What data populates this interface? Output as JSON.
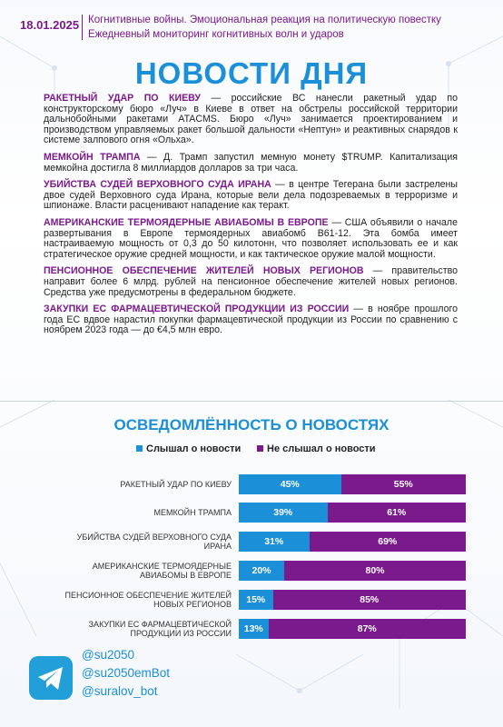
{
  "header": {
    "date": "18.01.2025",
    "line1": "Когнитивные войны. Эмоциональная реакция на политическую повестку",
    "line2": "Ежедневный мониторинг когнитивных волн и ударов"
  },
  "title": "НОВОСТИ ДНЯ",
  "news": [
    {
      "headline": "РАКЕТНЫЙ УДАР ПО КИЕВУ",
      "text": " — российские ВС нанесли ракетный удар по конструкторскому бюро «Луч» в Киеве в ответ на обстрелы российской территории дальнобойными ракетами ATACMS. Бюро «Луч» занимается проектированием и производством управляемых ракет большой дальности «Нептун» и реактивных снарядов к системе залпового огня «Ольха»."
    },
    {
      "headline": "МЕМКОЙН ТРАМПА",
      "text": " — Д. Трамп запустил мемную монету $TRUMP. Капитализация мемкойна достигла 8 миллиардов долларов за три часа."
    },
    {
      "headline": "УБИЙСТВА СУДЕЙ ВЕРХОВНОГО СУДА ИРАНА",
      "text": " — в центре Тегерана были застрелены двое судей Верховного суда Ирана, которые вели дела подозреваемых в терроризме и шпионаже. Власти расценивают нападение как теракт."
    },
    {
      "headline": "АМЕРИКАНСКИЕ ТЕРМОЯДЕРНЫЕ АВИАБОМЫ В ЕВРОПЕ",
      "text": " — США объявили о начале развертывания в Европе термоядерных авиабомб B61-12. Эта бомба имеет настраиваемую мощность от 0,3 до 50 килотонн, что позволяет использовать ее и как стратегическое оружие средней мощности, и как тактическое оружие малой мощности."
    },
    {
      "headline": "ПЕНСИОННОЕ ОБЕСПЕЧЕНИЕ ЖИТЕЛЕЙ НОВЫХ РЕГИОНОВ",
      "text": " — правительство направит более 6 млрд. рублей на пенсионное обеспечение жителей новых регионов. Средства уже предусмотрены в федеральном бюджете."
    },
    {
      "headline": "ЗАКУПКИ ЕС ФАРМАЦЕВТИЧЕСКОЙ ПРОДУКЦИИ ИЗ РОССИИ",
      "text": " — в ноябре прошлого года ЕС вдвое нарастил покупки фармацевтической продукции из России по сравнению с ноябрем 2023 года — до €4,5 млн евро."
    }
  ],
  "chart_data": {
    "type": "bar",
    "horizontal": true,
    "stacked": true,
    "title": "ОСВЕДОМЛЁННОСТЬ О НОВОСТЯХ",
    "categories": [
      "РАКЕТНЫЙ УДАР ПО КИЕВУ",
      "МЕМКОЙН ТРАМПА",
      "УБИЙСТВА СУДЕЙ ВЕРХОВНОГО СУДА ИРАНА",
      "АМЕРИКАНСКИЕ ТЕРМОЯДЕРНЫЕ АВИАБОМЫ В ЕВРОПЕ",
      "ПЕНСИОННОЕ ОБЕСПЕЧЕНИЕ ЖИТЕЛЕЙ НОВЫХ РЕГИОНОВ",
      "ЗАКУПКИ ЕС ФАРМАЦЕВТИЧЕСКОЙ ПРОДУКЦИИ ИЗ РОССИИ"
    ],
    "xlim": [
      0,
      100
    ],
    "series": [
      {
        "name": "Слышал о новости",
        "color": "#1b8fd8",
        "values": [
          45,
          39,
          31,
          20,
          15,
          13
        ],
        "value_labels": [
          "45%",
          "39%",
          "31%",
          "20%",
          "15%",
          "13%"
        ]
      },
      {
        "name": "Не слышал о новости",
        "color": "#7a1a8c",
        "values": [
          55,
          61,
          69,
          80,
          85,
          87
        ],
        "value_labels": [
          "55%",
          "61%",
          "69%",
          "80%",
          "85%",
          "87%"
        ]
      }
    ]
  },
  "footer": {
    "links": [
      "@su2050",
      "@su2050emBot",
      "@suralov_bot"
    ]
  }
}
